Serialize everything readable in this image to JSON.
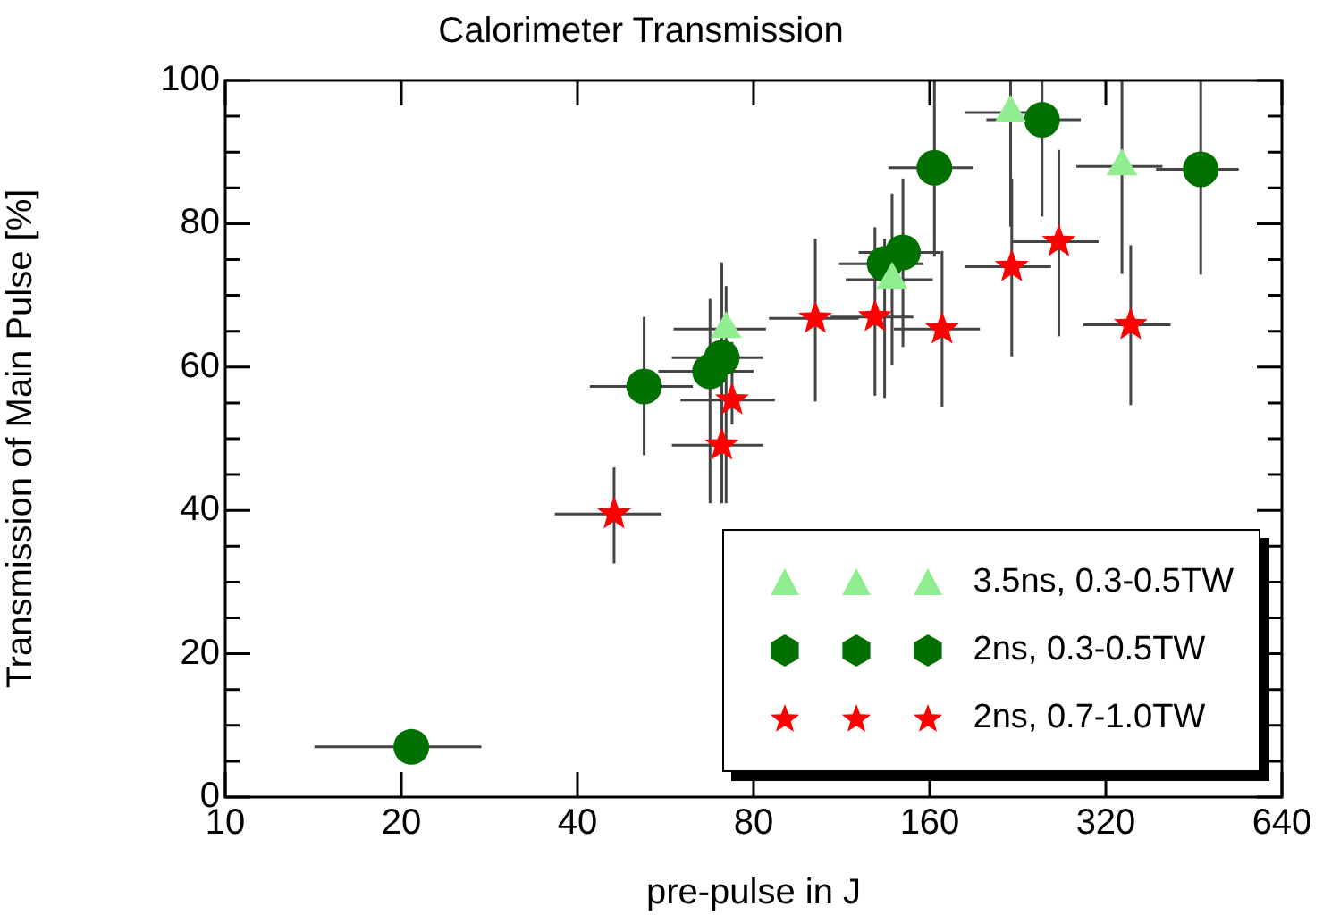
{
  "chart_data": {
    "type": "scatter",
    "title": "Calorimeter Transmission",
    "xlabel": "pre-pulse in J",
    "ylabel": "Transmission of Main Pulse [%]",
    "log": "x",
    "xlim": [
      10,
      640
    ],
    "xticks": [
      10,
      20,
      40,
      80,
      160,
      320,
      640
    ],
    "ylim": [
      0,
      100
    ],
    "yticks": [
      0,
      {
        "value": 5,
        "label": null
      },
      {
        "value": 10,
        "label": null
      },
      {
        "value": 15,
        "label": null
      },
      20,
      {
        "value": 25,
        "label": null
      },
      {
        "value": 30,
        "label": null
      },
      {
        "value": 35,
        "label": null
      },
      40,
      {
        "value": 45,
        "label": null
      },
      {
        "value": 50,
        "label": null
      },
      {
        "value": 55,
        "label": null
      },
      60,
      {
        "value": 65,
        "label": null
      },
      {
        "value": 70,
        "label": null
      },
      {
        "value": 75,
        "label": null
      },
      80,
      {
        "value": 85,
        "label": null
      },
      {
        "value": 90,
        "label": null
      },
      {
        "value": 95,
        "label": null
      },
      100
    ],
    "grid": false,
    "legend": "bottom right",
    "series": [
      {
        "name": "3.5ns, 0.3-0.5TW",
        "color": "#90ee90",
        "marker": "triangle",
        "x": [
          220,
          341,
          138,
          71.8
        ],
        "values": [
          95.5,
          88,
          72.2,
          65.3
        ],
        "errors": [
          [
            79.6,
            100
          ],
          [
            73,
            100
          ],
          [
            60.3,
            84.2
          ],
          [
            41,
            71.3
          ]
        ],
        "xerrors": [
          [
            184,
            260
          ],
          [
            285,
            400
          ],
          [
            115,
            162
          ],
          [
            58.4,
            84
          ]
        ]
      },
      {
        "name": "2ns, 0.3-0.5TW",
        "color": "#007000",
        "marker": "circle",
        "x": [
          249,
          465,
          163,
          144,
          134,
          70.6,
          67.4,
          52,
          20.8
        ],
        "values": [
          94.5,
          87.6,
          87.8,
          76,
          74.4,
          61.3,
          59.4,
          57.3,
          7
        ],
        "errors": [
          [
            81,
            100
          ],
          [
            72.9,
            100
          ],
          [
            75.4,
            100
          ],
          [
            62.8,
            86.3
          ],
          [
            55.7,
            77.9
          ],
          [
            49.4,
            74.6
          ],
          [
            41,
            69.5
          ],
          [
            47.7,
            67
          ],
          null
        ],
        "xerrors": [
          [
            200,
            290
          ],
          [
            390,
            540
          ],
          [
            136,
            190
          ],
          [
            121,
            167
          ],
          [
            112,
            156
          ],
          [
            58,
            83
          ],
          [
            55,
            80
          ],
          [
            42,
            63
          ],
          [
            14.2,
            27.4
          ]
        ]
      },
      {
        "name": "2ns, 0.7-1.0TW",
        "color": "#ff0000",
        "marker": "star",
        "x": [
          102,
          129,
          168,
          221,
          266,
          353,
          73.5,
          70.6,
          46.2
        ],
        "values": [
          66.8,
          67,
          65.3,
          74,
          77.5,
          65.9,
          55.4,
          49.1,
          39.5
        ],
        "errors": [
          [
            55.2,
            77.9
          ],
          [
            56,
            79.5
          ],
          [
            54.4,
            76.2
          ],
          [
            61.5,
            86.3
          ],
          [
            64.3,
            90.3
          ],
          [
            54.7,
            77
          ],
          [
            52,
            63.5
          ],
          [
            41,
            55.3
          ],
          [
            32.6,
            46
          ]
        ],
        "xerrors": [
          [
            85,
            121
          ],
          [
            108,
            150
          ],
          [
            139,
            195
          ],
          [
            184,
            258
          ],
          [
            222,
            311
          ],
          [
            293,
            413
          ],
          [
            60,
            87
          ],
          [
            58,
            83
          ],
          [
            36.6,
            55.7
          ]
        ]
      }
    ]
  }
}
